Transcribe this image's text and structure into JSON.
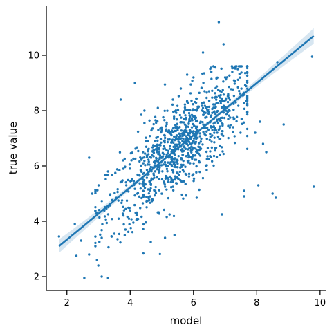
{
  "chart_data": {
    "type": "scatter",
    "title": "",
    "xlabel": "model",
    "ylabel": "true value",
    "xlim": [
      1.35,
      10.2
    ],
    "ylim": [
      1.5,
      11.8
    ],
    "xticks": [
      2,
      4,
      6,
      8,
      10
    ],
    "yticks": [
      2,
      4,
      6,
      8,
      10
    ],
    "grid": false,
    "colors": {
      "points": "#1f77b4",
      "line": "#1f77b4",
      "band": "#1f77b4"
    },
    "regression": {
      "x": [
        1.75,
        9.8
      ],
      "y": [
        3.1,
        10.7
      ],
      "ci_at_x_end": 0.28,
      "ci_at_x_center": 0.05,
      "x_center": 5.6
    },
    "series": [
      {
        "x": [
          1.75,
          2.25,
          2.3,
          2.45,
          2.55,
          2.7,
          2.7,
          2.95,
          3.1,
          3.3,
          6.8,
          6.95,
          8.85,
          9.8,
          9.75,
          8.65,
          8.2,
          8.3,
          7.6,
          8.05,
          6.9,
          6.1,
          4.15,
          3.7,
          4.45,
          4.8,
          3.0,
          2.8,
          3.3,
          4.65,
          2.9,
          3.1,
          3.85,
          4.1,
          4.2,
          3.5,
          3.6,
          8.1,
          7.95,
          7.6,
          8.5,
          8.6,
          7.0,
          6.3,
          5.8,
          6.0,
          5.1,
          5.4,
          7.4,
          6.55,
          4.35,
          4.45,
          5.35,
          5.6
        ],
        "y": [
          3.45,
          3.9,
          2.75,
          3.3,
          1.95,
          6.3,
          2.8,
          2.6,
          2.0,
          1.95,
          11.2,
          10.4,
          7.5,
          5.25,
          9.95,
          9.75,
          6.8,
          6.5,
          5.1,
          5.3,
          4.25,
          4.85,
          9.0,
          8.4,
          8.0,
          7.65,
          5.3,
          5.0,
          5.8,
          3.25,
          3.1,
          3.4,
          3.7,
          3.95,
          4.05,
          3.55,
          3.35,
          7.6,
          7.2,
          4.9,
          5.0,
          4.85,
          9.2,
          10.1,
          9.3,
          9.2,
          3.4,
          3.5,
          9.5,
          9.55,
          7.85,
          7.55,
          8.4,
          8.8
        ]
      }
    ],
    "n_generated_points": 1000
  }
}
